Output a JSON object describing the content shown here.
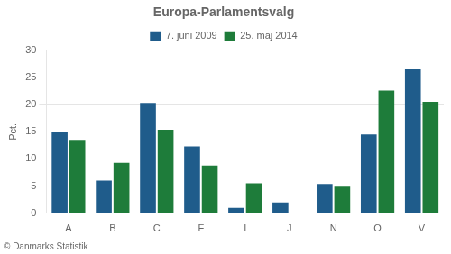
{
  "chart_data": {
    "type": "bar",
    "title": "Europa-Parlamentsvalg",
    "categories": [
      "A",
      "B",
      "C",
      "F",
      "I",
      "J",
      "N",
      "O",
      "V"
    ],
    "series": [
      {
        "name": "7. juni 2009",
        "color": "#1f5c8b",
        "values": [
          14.9,
          6.0,
          20.3,
          12.3,
          1.0,
          2.0,
          5.4,
          14.5,
          26.5
        ]
      },
      {
        "name": "25. maj 2014",
        "color": "#1e7c3a",
        "values": [
          13.5,
          9.3,
          15.4,
          8.8,
          5.5,
          0,
          4.9,
          22.6,
          20.5
        ]
      }
    ],
    "ylabel": "Pct.",
    "ylim": [
      0,
      30
    ],
    "yticks": [
      0,
      5,
      10,
      15,
      20,
      25,
      30
    ],
    "grid": true,
    "legend": "top",
    "annotations": [
      "© Danmarks Statistik"
    ]
  }
}
